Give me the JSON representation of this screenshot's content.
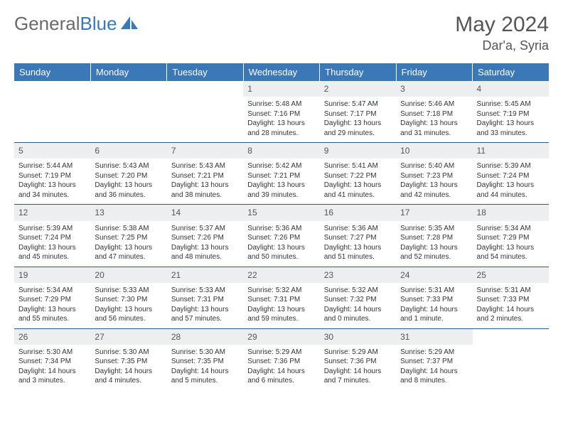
{
  "brand": {
    "general": "General",
    "blue": "Blue"
  },
  "title": "May 2024",
  "location": "Dar'a, Syria",
  "colors": {
    "header_bg": "#3a78b8",
    "header_text": "#ffffff",
    "daynum_bg": "#eceeef",
    "rule": "#2b5a8a",
    "text": "#333333",
    "logo_gray": "#6a6a6a",
    "logo_blue": "#3a78b8"
  },
  "weekdays": [
    "Sunday",
    "Monday",
    "Tuesday",
    "Wednesday",
    "Thursday",
    "Friday",
    "Saturday"
  ],
  "first_weekday_index": 3,
  "days": [
    {
      "n": "1",
      "sr": "5:48 AM",
      "ss": "7:16 PM",
      "dl": "13 hours and 28 minutes."
    },
    {
      "n": "2",
      "sr": "5:47 AM",
      "ss": "7:17 PM",
      "dl": "13 hours and 29 minutes."
    },
    {
      "n": "3",
      "sr": "5:46 AM",
      "ss": "7:18 PM",
      "dl": "13 hours and 31 minutes."
    },
    {
      "n": "4",
      "sr": "5:45 AM",
      "ss": "7:19 PM",
      "dl": "13 hours and 33 minutes."
    },
    {
      "n": "5",
      "sr": "5:44 AM",
      "ss": "7:19 PM",
      "dl": "13 hours and 34 minutes."
    },
    {
      "n": "6",
      "sr": "5:43 AM",
      "ss": "7:20 PM",
      "dl": "13 hours and 36 minutes."
    },
    {
      "n": "7",
      "sr": "5:43 AM",
      "ss": "7:21 PM",
      "dl": "13 hours and 38 minutes."
    },
    {
      "n": "8",
      "sr": "5:42 AM",
      "ss": "7:21 PM",
      "dl": "13 hours and 39 minutes."
    },
    {
      "n": "9",
      "sr": "5:41 AM",
      "ss": "7:22 PM",
      "dl": "13 hours and 41 minutes."
    },
    {
      "n": "10",
      "sr": "5:40 AM",
      "ss": "7:23 PM",
      "dl": "13 hours and 42 minutes."
    },
    {
      "n": "11",
      "sr": "5:39 AM",
      "ss": "7:24 PM",
      "dl": "13 hours and 44 minutes."
    },
    {
      "n": "12",
      "sr": "5:39 AM",
      "ss": "7:24 PM",
      "dl": "13 hours and 45 minutes."
    },
    {
      "n": "13",
      "sr": "5:38 AM",
      "ss": "7:25 PM",
      "dl": "13 hours and 47 minutes."
    },
    {
      "n": "14",
      "sr": "5:37 AM",
      "ss": "7:26 PM",
      "dl": "13 hours and 48 minutes."
    },
    {
      "n": "15",
      "sr": "5:36 AM",
      "ss": "7:26 PM",
      "dl": "13 hours and 50 minutes."
    },
    {
      "n": "16",
      "sr": "5:36 AM",
      "ss": "7:27 PM",
      "dl": "13 hours and 51 minutes."
    },
    {
      "n": "17",
      "sr": "5:35 AM",
      "ss": "7:28 PM",
      "dl": "13 hours and 52 minutes."
    },
    {
      "n": "18",
      "sr": "5:34 AM",
      "ss": "7:29 PM",
      "dl": "13 hours and 54 minutes."
    },
    {
      "n": "19",
      "sr": "5:34 AM",
      "ss": "7:29 PM",
      "dl": "13 hours and 55 minutes."
    },
    {
      "n": "20",
      "sr": "5:33 AM",
      "ss": "7:30 PM",
      "dl": "13 hours and 56 minutes."
    },
    {
      "n": "21",
      "sr": "5:33 AM",
      "ss": "7:31 PM",
      "dl": "13 hours and 57 minutes."
    },
    {
      "n": "22",
      "sr": "5:32 AM",
      "ss": "7:31 PM",
      "dl": "13 hours and 59 minutes."
    },
    {
      "n": "23",
      "sr": "5:32 AM",
      "ss": "7:32 PM",
      "dl": "14 hours and 0 minutes."
    },
    {
      "n": "24",
      "sr": "5:31 AM",
      "ss": "7:33 PM",
      "dl": "14 hours and 1 minute."
    },
    {
      "n": "25",
      "sr": "5:31 AM",
      "ss": "7:33 PM",
      "dl": "14 hours and 2 minutes."
    },
    {
      "n": "26",
      "sr": "5:30 AM",
      "ss": "7:34 PM",
      "dl": "14 hours and 3 minutes."
    },
    {
      "n": "27",
      "sr": "5:30 AM",
      "ss": "7:35 PM",
      "dl": "14 hours and 4 minutes."
    },
    {
      "n": "28",
      "sr": "5:30 AM",
      "ss": "7:35 PM",
      "dl": "14 hours and 5 minutes."
    },
    {
      "n": "29",
      "sr": "5:29 AM",
      "ss": "7:36 PM",
      "dl": "14 hours and 6 minutes."
    },
    {
      "n": "30",
      "sr": "5:29 AM",
      "ss": "7:36 PM",
      "dl": "14 hours and 7 minutes."
    },
    {
      "n": "31",
      "sr": "5:29 AM",
      "ss": "7:37 PM",
      "dl": "14 hours and 8 minutes."
    }
  ],
  "labels": {
    "sunrise": "Sunrise:",
    "sunset": "Sunset:",
    "daylight": "Daylight:"
  }
}
